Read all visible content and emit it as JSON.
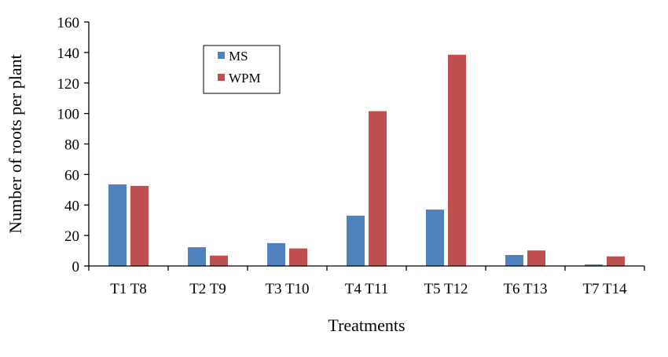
{
  "chart_data": {
    "type": "bar",
    "title": "",
    "xlabel": "Treatments",
    "ylabel": "Number of roots per plant",
    "ylim": [
      0,
      160
    ],
    "yticks": [
      0,
      20,
      40,
      60,
      80,
      100,
      120,
      140,
      160
    ],
    "categories": [
      "T1 T8",
      "T2 T9",
      "T3 T10",
      "T4 T11",
      "T5 T12",
      "T6 T13",
      "T7 T14"
    ],
    "series": [
      {
        "name": "MS",
        "color": "#4f81bd",
        "values": [
          53.5,
          12.3,
          15,
          33,
          37,
          7.2,
          1
        ]
      },
      {
        "name": "WPM",
        "color": "#c0504d",
        "values": [
          52.5,
          6.8,
          11.5,
          101.5,
          138.5,
          10.2,
          6.3
        ]
      }
    ],
    "legend": {
      "position": "top-left",
      "entries": [
        "MS",
        "WPM"
      ]
    },
    "grid": false
  }
}
